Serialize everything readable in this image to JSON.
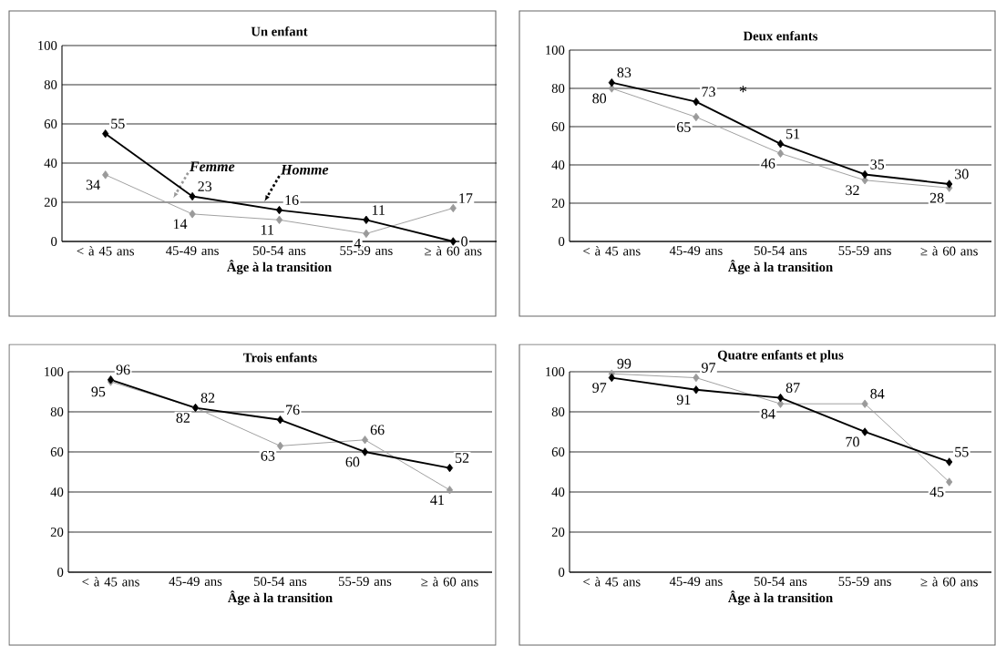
{
  "chart_data": [
    {
      "type": "line",
      "title": "Un enfant",
      "xlabel": "Âge à la transition",
      "categories": [
        "< à 45 ans",
        "45-49 ans",
        "50-54 ans",
        "55-59 ans",
        "≥ à 60 ans"
      ],
      "ylim": [
        0,
        100
      ],
      "yticks": [
        0,
        20,
        40,
        60,
        80,
        100
      ],
      "grid": "y",
      "marker": "diamond",
      "data_labels": true,
      "series": [
        {
          "name": "Femme",
          "color": "#9a9a9a",
          "values": [
            34,
            14,
            11,
            4,
            17
          ]
        },
        {
          "name": "Homme",
          "color": "#000000",
          "values": [
            55,
            23,
            16,
            11,
            0
          ]
        }
      ]
    },
    {
      "type": "line",
      "title": "Deux enfants",
      "xlabel": "Âge à la transition",
      "categories": [
        "< à 45 ans",
        "45-49 ans",
        "50-54 ans",
        "55-59 ans",
        "≥ à 60 ans"
      ],
      "ylim": [
        0,
        100
      ],
      "yticks": [
        0,
        20,
        40,
        60,
        80,
        100
      ],
      "grid": "y",
      "marker": "diamond",
      "data_labels": true,
      "annotations": [
        {
          "text": "*",
          "x": "45-49 ans",
          "y": 73
        }
      ],
      "series": [
        {
          "color": "#9a9a9a",
          "values": [
            80,
            65,
            46,
            32,
            28
          ]
        },
        {
          "color": "#000000",
          "values": [
            83,
            73,
            51,
            35,
            30
          ]
        }
      ]
    },
    {
      "type": "line",
      "title": "Trois enfants",
      "xlabel": "Âge à la transition",
      "categories": [
        "< à 45 ans",
        "45-49 ans",
        "50-54 ans",
        "55-59 ans",
        "≥ à 60 ans"
      ],
      "ylim": [
        0,
        100
      ],
      "yticks": [
        0,
        20,
        40,
        60,
        80,
        100
      ],
      "grid": "y",
      "marker": "diamond",
      "data_labels": true,
      "series": [
        {
          "color": "#9a9a9a",
          "values": [
            95,
            82,
            63,
            66,
            41
          ]
        },
        {
          "color": "#000000",
          "values": [
            96,
            82,
            76,
            60,
            52
          ]
        }
      ]
    },
    {
      "type": "line",
      "title": "Quatre enfants et plus",
      "xlabel": "Âge à la transition",
      "categories": [
        "< à 45 ans",
        "45-49 ans",
        "50-54 ans",
        "55-59 ans",
        "≥ à 60 ans"
      ],
      "ylim": [
        0,
        100
      ],
      "yticks": [
        0,
        20,
        40,
        60,
        80,
        100
      ],
      "grid": "y",
      "marker": "diamond",
      "data_labels": true,
      "series": [
        {
          "color": "#9a9a9a",
          "values": [
            99,
            97,
            84,
            84,
            45
          ]
        },
        {
          "color": "#000000",
          "values": [
            97,
            91,
            87,
            70,
            55
          ]
        }
      ]
    }
  ]
}
